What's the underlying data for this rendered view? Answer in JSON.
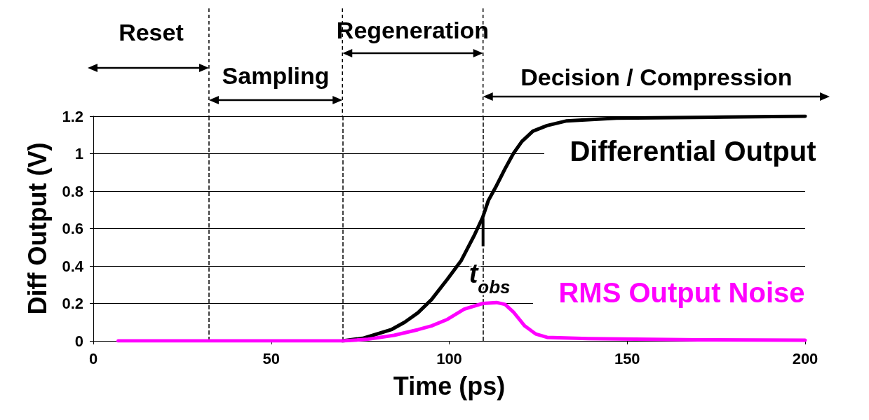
{
  "chart_data": {
    "type": "line",
    "xlabel": "Time (ps)",
    "ylabel": "Diff Output (V)",
    "xlim": [
      0,
      200
    ],
    "xticks": [
      0,
      50,
      100,
      150,
      200
    ],
    "ylim": [
      0,
      1.2
    ],
    "yticks": [
      0,
      0.2,
      0.4,
      0.6,
      0.8,
      1,
      1.2
    ],
    "grid": "y",
    "legend": false,
    "marker": "none",
    "line_style": "solid",
    "series": [
      {
        "name": "Differential Output",
        "color": "#000000",
        "x": [
          70,
          76,
          83.7,
          87.5,
          91.2,
          95,
          99.5,
          103.4,
          107.2,
          109.4,
          111,
          113.3,
          115.7,
          118,
          120.4,
          123.5,
          127.5,
          133,
          147,
          177,
          200
        ],
        "values": [
          0,
          0.015,
          0.06,
          0.1,
          0.15,
          0.22,
          0.33,
          0.43,
          0.57,
          0.66,
          0.75,
          0.83,
          0.92,
          1,
          1.065,
          1.12,
          1.15,
          1.175,
          1.19,
          1.195,
          1.2
        ]
      },
      {
        "name": "RMS Output Noise",
        "color": "#ff00ff",
        "x": [
          7,
          30,
          50,
          70,
          76.8,
          84.5,
          91.2,
          95,
          99.5,
          104.2,
          109.4,
          113.3,
          115.7,
          118,
          121.2,
          124.3,
          127.5,
          139,
          170,
          200
        ],
        "values": [
          0,
          0,
          0,
          0,
          0.008,
          0.03,
          0.06,
          0.08,
          0.115,
          0.17,
          0.2,
          0.205,
          0.195,
          0.155,
          0.08,
          0.037,
          0.019,
          0.012,
          0.006,
          0.004
        ]
      }
    ],
    "ref_lines": [
      {
        "axis": "x",
        "value": 32.5,
        "line_style": "dashed",
        "color": "#000000"
      },
      {
        "axis": "x",
        "value": 70,
        "line_style": "dashed",
        "color": "#000000"
      },
      {
        "axis": "x",
        "value": 109.5,
        "line_style": "dashed",
        "color": "#000000"
      }
    ],
    "annotations": [
      "Reset",
      "Sampling",
      "Regeneration",
      "Decision / Compression",
      "t$_{obs}$"
    ]
  }
}
